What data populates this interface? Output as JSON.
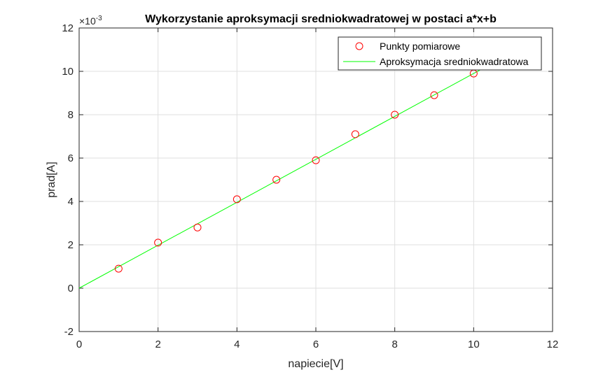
{
  "chart_data": {
    "type": "scatter",
    "title": "Wykorzystanie aproksymacji sredniokwadratowej w postaci a*x+b",
    "xlabel": "napiecie[V]",
    "ylabel": "prad[A]",
    "xlim": [
      0,
      12
    ],
    "ylim": [
      -2,
      12
    ],
    "y_exponent_base": "×10",
    "y_exponent_power": "-3",
    "x_ticks": [
      "0",
      "2",
      "4",
      "6",
      "8",
      "10",
      "12"
    ],
    "y_ticks": [
      "-2",
      "0",
      "2",
      "4",
      "6",
      "8",
      "10",
      "12"
    ],
    "grid": true,
    "legend_position": "top-right",
    "series": [
      {
        "name": "Punkty pomiarowe",
        "kind": "markers",
        "marker": "circle",
        "color": "#ff0000",
        "x": [
          1,
          2,
          3,
          4,
          5,
          6,
          7,
          8,
          9,
          10
        ],
        "y": [
          0.9,
          2.1,
          2.8,
          4.1,
          5.0,
          5.9,
          7.1,
          8.0,
          8.9,
          9.9
        ]
      },
      {
        "name": "Aproksymacja sredniokwadratowa",
        "kind": "line",
        "color": "#00ff00",
        "x": [
          0,
          10.3
        ],
        "y": [
          0.0,
          10.2
        ]
      }
    ]
  }
}
